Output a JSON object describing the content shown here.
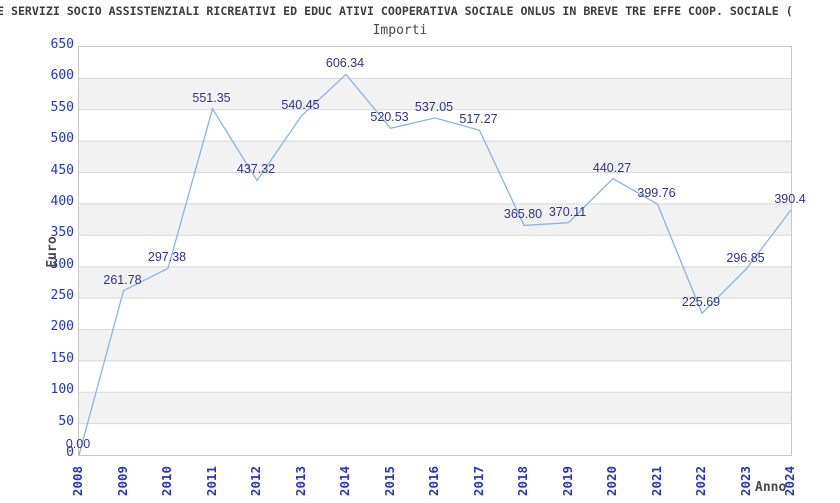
{
  "chart_data": {
    "type": "line",
    "title": "E SERVIZI SOCIO ASSISTENZIALI RICREATIVI ED EDUC ATIVI COOPERATIVA SOCIALE ONLUS IN BREVE TRE EFFE COOP. SOCIALE (",
    "title_truncated": true,
    "subtitle": "Importi",
    "xlabel": "Anno",
    "ylabel": "Euro",
    "x": [
      "2008",
      "2009",
      "2010",
      "2011",
      "2012",
      "2013",
      "2014",
      "2015",
      "2016",
      "2017",
      "2018",
      "2019",
      "2020",
      "2021",
      "2022",
      "2023",
      "2024"
    ],
    "values": [
      0.0,
      261.78,
      297.38,
      551.35,
      437.32,
      540.45,
      606.34,
      520.53,
      537.05,
      517.27,
      365.8,
      370.11,
      440.27,
      399.76,
      225.69,
      296.85,
      390.4
    ],
    "point_labels": [
      "0.00",
      "261.78",
      "297.38",
      "551.35",
      "437.32",
      "540.45",
      "606.34",
      "520.53",
      "537.05",
      "517.27",
      "365.80",
      "370.11",
      "440.27",
      "399.76",
      "225.69",
      "296.85",
      "390.4"
    ],
    "ylim": [
      0,
      650
    ],
    "ytick_step": 50,
    "grid": "horizontal-bands",
    "legend": "none",
    "colors": {
      "line": "#8ab4e4",
      "point_label": "#32328c",
      "tick_label": "#2533cc",
      "band_gray": "#f2f2f2",
      "band_white": "#ffffff",
      "gridline": "#d9d9d9",
      "plot_border": "#c8c8c8",
      "title_text": "#3d3d3d",
      "axis_title_text": "#4a4a4a"
    }
  }
}
